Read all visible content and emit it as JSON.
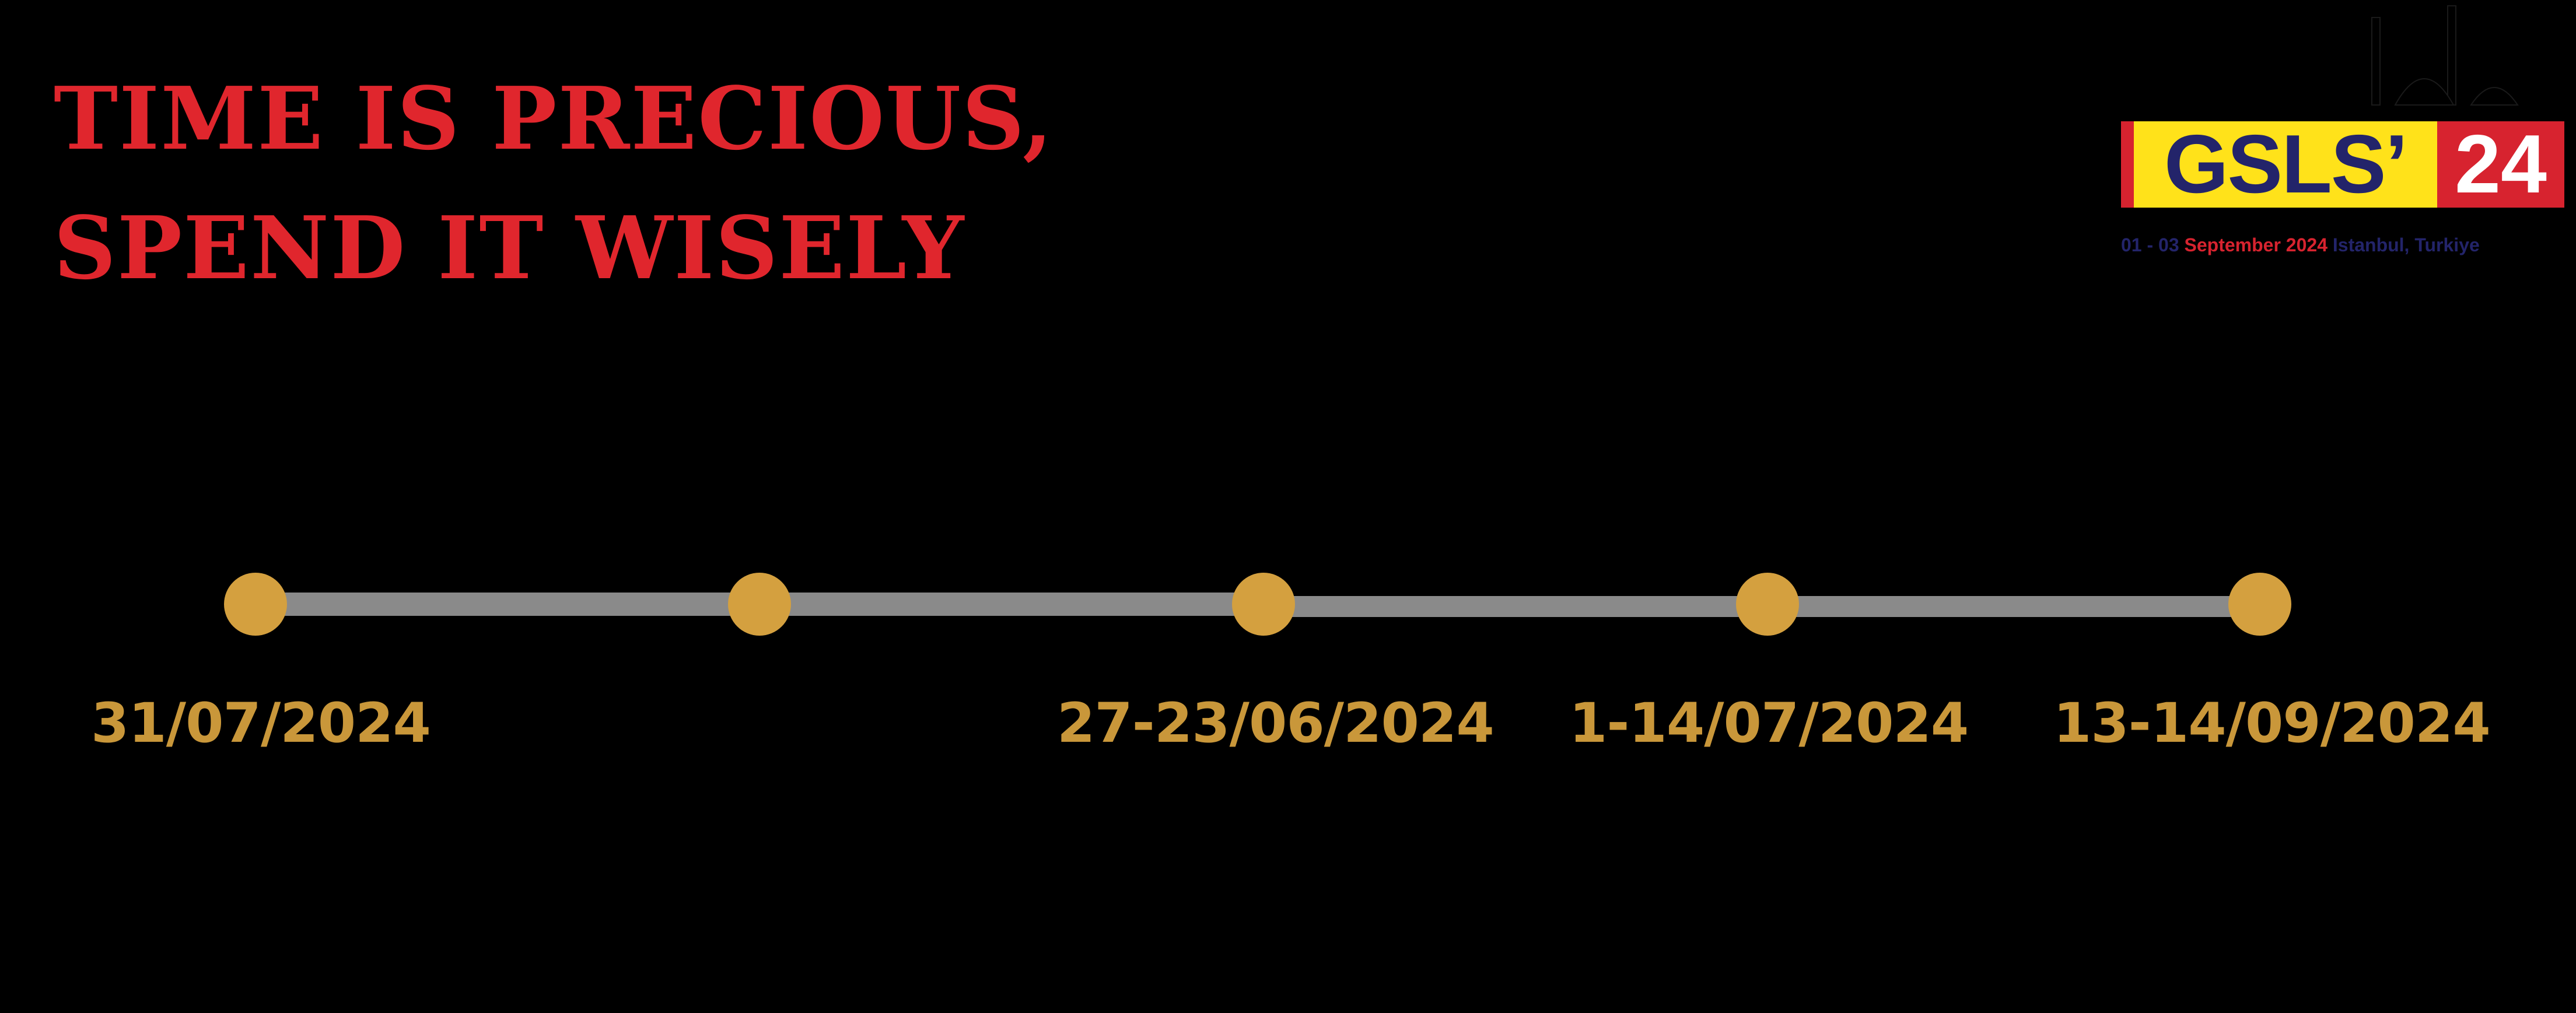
{
  "headline": {
    "line1": "TIME IS PRECIOUS,",
    "line2": "SPEND IT WISELY"
  },
  "logo": {
    "top_text": "GSLS",
    "brand_left": "GSLS’",
    "brand_right": "24",
    "subtitle": "",
    "dates_prefix": "01 - 03",
    "dates_month": "September 2024",
    "location": "Istanbul, Turkiye",
    "colors": {
      "yellow": "#ffe21a",
      "red": "#d7232f",
      "navy": "#23246a"
    }
  },
  "timeline": {
    "color_track": "#8a8a8a",
    "color_dot": "#d4a03f",
    "color_label": "#c9973a",
    "milestones": [
      {
        "label": "31/07/2024"
      },
      {
        "label": ""
      },
      {
        "label": "27-23/06/2024"
      },
      {
        "label": "1-14/07/2024"
      },
      {
        "label": "13-14/09/2024"
      }
    ]
  }
}
